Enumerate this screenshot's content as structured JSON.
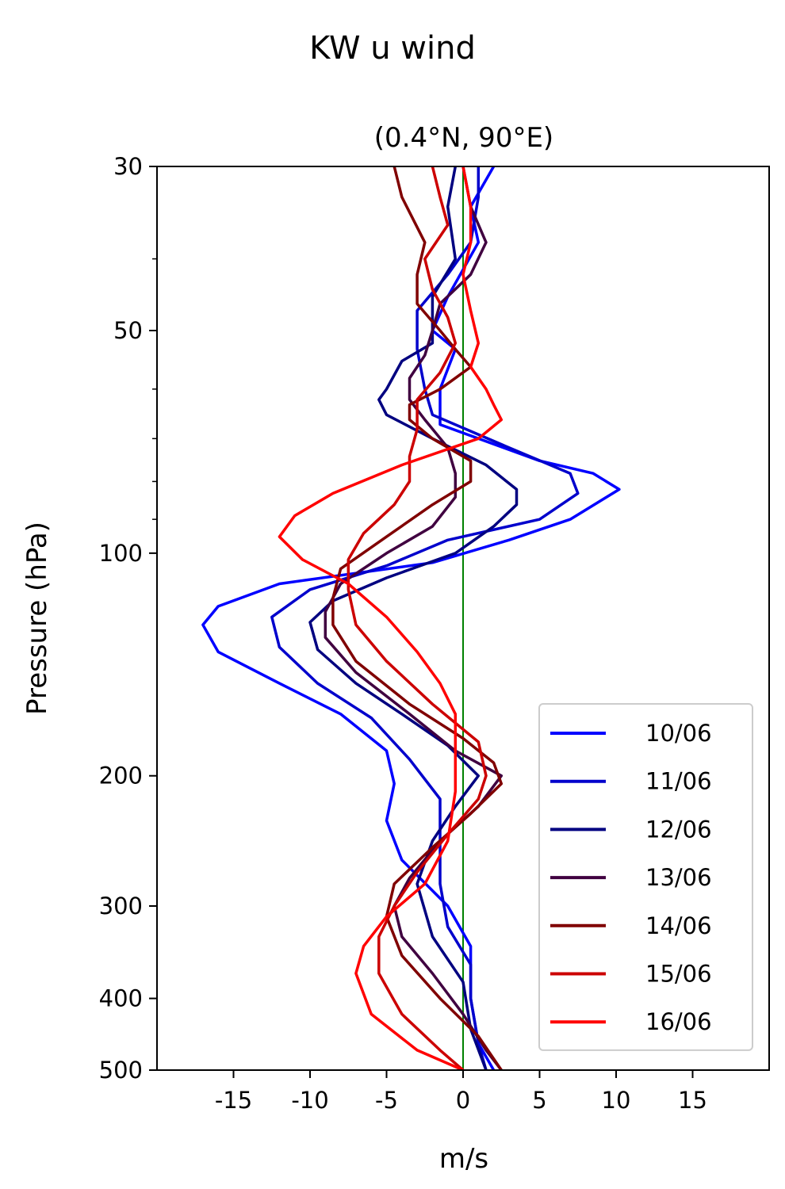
{
  "chart_data": {
    "type": "line",
    "title": "KW u wind",
    "subtitle": "(0.4°N, 90°E)",
    "xlabel": "m/s",
    "ylabel": "Pressure (hPa)",
    "xlim": [
      -20,
      20
    ],
    "ylim": [
      500,
      30
    ],
    "yscale": "log",
    "x_ticks": [
      -15,
      -10,
      -5,
      0,
      5,
      10,
      15
    ],
    "x_tick_labels": [
      "-15",
      "-10",
      "-5",
      "0",
      "5",
      "10",
      "15"
    ],
    "y_ticks": [
      30,
      50,
      100,
      200,
      300,
      400,
      500
    ],
    "y_tick_labels": [
      "30",
      "50",
      "100",
      "200",
      "300",
      "400",
      "500"
    ],
    "y_minor_ticks": [
      40,
      60,
      70,
      80,
      90
    ],
    "reference_line": {
      "x": 0,
      "color": "#008000"
    },
    "legend_position": "lower-right",
    "grid": false,
    "series": [
      {
        "name": "10/06",
        "color": "#0000ff",
        "points": [
          [
            2.0,
            30
          ],
          [
            0.5,
            34
          ],
          [
            1.0,
            38
          ],
          [
            -1.0,
            45
          ],
          [
            -2.0,
            50
          ],
          [
            -0.5,
            53
          ],
          [
            -1.5,
            60
          ],
          [
            -1.5,
            67
          ],
          [
            5.0,
            75
          ],
          [
            8.5,
            78
          ],
          [
            10.2,
            82
          ],
          [
            7.0,
            90
          ],
          [
            3.0,
            96
          ],
          [
            -2.0,
            103
          ],
          [
            -12.0,
            110
          ],
          [
            -16.0,
            118
          ],
          [
            -17.0,
            125
          ],
          [
            -16.0,
            136
          ],
          [
            -12.0,
            150
          ],
          [
            -8.0,
            165
          ],
          [
            -5.0,
            185
          ],
          [
            -4.5,
            205
          ],
          [
            -5.0,
            230
          ],
          [
            -4.0,
            260
          ],
          [
            -1.0,
            300
          ],
          [
            0.5,
            340
          ],
          [
            0.5,
            400
          ],
          [
            1.0,
            460
          ],
          [
            2.0,
            500
          ]
        ]
      },
      {
        "name": "11/06",
        "color": "#0000cc",
        "points": [
          [
            1.0,
            30
          ],
          [
            1.0,
            33
          ],
          [
            0.5,
            38
          ],
          [
            -1.0,
            42
          ],
          [
            -3.0,
            47
          ],
          [
            -3.0,
            53
          ],
          [
            -2.5,
            60
          ],
          [
            -2.0,
            65
          ],
          [
            3.0,
            72
          ],
          [
            7.0,
            78
          ],
          [
            7.5,
            83
          ],
          [
            5.0,
            90
          ],
          [
            -1.0,
            96
          ],
          [
            -5.0,
            104
          ],
          [
            -10.0,
            112
          ],
          [
            -12.5,
            122
          ],
          [
            -12.0,
            134
          ],
          [
            -9.5,
            150
          ],
          [
            -6.0,
            167
          ],
          [
            -3.5,
            190
          ],
          [
            -1.5,
            215
          ],
          [
            -1.5,
            245
          ],
          [
            -1.5,
            280
          ],
          [
            -1.0,
            320
          ],
          [
            0.5,
            360
          ],
          [
            0.5,
            400
          ],
          [
            1.0,
            460
          ],
          [
            1.5,
            500
          ]
        ]
      },
      {
        "name": "12/06",
        "color": "#000080",
        "points": [
          [
            -0.5,
            30
          ],
          [
            -1.0,
            34
          ],
          [
            -0.5,
            40
          ],
          [
            -2.0,
            45
          ],
          [
            -2.0,
            52
          ],
          [
            -4.0,
            55
          ],
          [
            -5.0,
            60
          ],
          [
            -5.5,
            62
          ],
          [
            -5.0,
            65
          ],
          [
            -2.0,
            70
          ],
          [
            1.5,
            76
          ],
          [
            3.5,
            82
          ],
          [
            3.5,
            86
          ],
          [
            2.0,
            92
          ],
          [
            -0.5,
            100
          ],
          [
            -5.0,
            108
          ],
          [
            -8.5,
            116
          ],
          [
            -10.0,
            124
          ],
          [
            -9.5,
            135
          ],
          [
            -7.0,
            150
          ],
          [
            -4.0,
            165
          ],
          [
            -1.0,
            182
          ],
          [
            1.0,
            200
          ],
          [
            -0.5,
            220
          ],
          [
            -2.0,
            245
          ],
          [
            -3.0,
            280
          ],
          [
            -2.0,
            330
          ],
          [
            0.0,
            380
          ],
          [
            0.5,
            440
          ],
          [
            1.5,
            500
          ]
        ]
      },
      {
        "name": "13/06",
        "color": "#400040",
        "points": [
          [
            0.0,
            30
          ],
          [
            0.5,
            34
          ],
          [
            1.5,
            38
          ],
          [
            0.5,
            42
          ],
          [
            -1.5,
            46
          ],
          [
            -2.0,
            50
          ],
          [
            -2.5,
            54
          ],
          [
            -3.5,
            58
          ],
          [
            -3.5,
            62
          ],
          [
            -2.5,
            66
          ],
          [
            -1.0,
            72
          ],
          [
            -0.5,
            78
          ],
          [
            -0.5,
            84
          ],
          [
            -2.0,
            92
          ],
          [
            -5.0,
            100
          ],
          [
            -8.0,
            110
          ],
          [
            -9.0,
            120
          ],
          [
            -9.0,
            130
          ],
          [
            -7.0,
            145
          ],
          [
            -3.5,
            165
          ],
          [
            -0.5,
            185
          ],
          [
            2.5,
            200
          ],
          [
            1.0,
            220
          ],
          [
            -1.5,
            245
          ],
          [
            -3.5,
            275
          ],
          [
            -4.5,
            300
          ],
          [
            -4.0,
            330
          ],
          [
            -2.0,
            370
          ],
          [
            0.0,
            420
          ],
          [
            1.5,
            470
          ],
          [
            2.5,
            500
          ]
        ]
      },
      {
        "name": "14/06",
        "color": "#800000",
        "points": [
          [
            -4.5,
            30
          ],
          [
            -4.0,
            33
          ],
          [
            -2.5,
            38
          ],
          [
            -3.0,
            42
          ],
          [
            -3.0,
            46
          ],
          [
            -1.5,
            50
          ],
          [
            -0.5,
            53
          ],
          [
            0.5,
            56
          ],
          [
            -1.5,
            60
          ],
          [
            -3.5,
            63
          ],
          [
            -3.5,
            66
          ],
          [
            -2.0,
            70
          ],
          [
            0.5,
            75
          ],
          [
            0.5,
            80
          ],
          [
            -2.0,
            86
          ],
          [
            -5.0,
            95
          ],
          [
            -8.0,
            105
          ],
          [
            -8.5,
            115
          ],
          [
            -8.5,
            125
          ],
          [
            -7.0,
            140
          ],
          [
            -3.5,
            160
          ],
          [
            0.0,
            178
          ],
          [
            2.0,
            192
          ],
          [
            2.5,
            205
          ],
          [
            0.5,
            225
          ],
          [
            -2.0,
            250
          ],
          [
            -4.5,
            280
          ],
          [
            -5.0,
            310
          ],
          [
            -4.0,
            350
          ],
          [
            -1.5,
            400
          ],
          [
            1.0,
            450
          ],
          [
            2.5,
            500
          ]
        ]
      },
      {
        "name": "15/06",
        "color": "#cc0000",
        "points": [
          [
            -2.0,
            30
          ],
          [
            -1.5,
            33
          ],
          [
            -1.0,
            36
          ],
          [
            -2.5,
            40
          ],
          [
            -2.0,
            44
          ],
          [
            -1.0,
            48
          ],
          [
            -0.5,
            52
          ],
          [
            -1.5,
            57
          ],
          [
            -3.0,
            62
          ],
          [
            -3.0,
            68
          ],
          [
            -3.5,
            74
          ],
          [
            -3.5,
            80
          ],
          [
            -4.5,
            86
          ],
          [
            -6.5,
            94
          ],
          [
            -7.5,
            102
          ],
          [
            -7.5,
            112
          ],
          [
            -7.0,
            125
          ],
          [
            -5.0,
            140
          ],
          [
            -2.0,
            160
          ],
          [
            1.0,
            180
          ],
          [
            1.5,
            200
          ],
          [
            1.0,
            215
          ],
          [
            -1.0,
            240
          ],
          [
            -3.0,
            270
          ],
          [
            -4.5,
            300
          ],
          [
            -5.5,
            330
          ],
          [
            -5.5,
            370
          ],
          [
            -4.0,
            420
          ],
          [
            -1.5,
            470
          ],
          [
            0.0,
            500
          ]
        ]
      },
      {
        "name": "16/06",
        "color": "#ff0000",
        "points": [
          [
            0.0,
            30
          ],
          [
            0.5,
            34
          ],
          [
            0.5,
            38
          ],
          [
            0.0,
            42
          ],
          [
            0.5,
            47
          ],
          [
            1.0,
            52
          ],
          [
            0.5,
            56
          ],
          [
            1.5,
            60
          ],
          [
            2.0,
            63
          ],
          [
            2.5,
            66
          ],
          [
            1.0,
            70
          ],
          [
            -4.0,
            76
          ],
          [
            -8.5,
            83
          ],
          [
            -11.0,
            89
          ],
          [
            -12.0,
            95
          ],
          [
            -10.5,
            102
          ],
          [
            -7.5,
            110
          ],
          [
            -5.0,
            122
          ],
          [
            -3.0,
            136
          ],
          [
            -1.5,
            150
          ],
          [
            -0.5,
            165
          ],
          [
            -0.5,
            185
          ],
          [
            -0.5,
            210
          ],
          [
            -1.0,
            245
          ],
          [
            -2.5,
            280
          ],
          [
            -5.0,
            310
          ],
          [
            -6.5,
            340
          ],
          [
            -7.0,
            370
          ],
          [
            -6.0,
            420
          ],
          [
            -3.0,
            470
          ],
          [
            0.0,
            500
          ]
        ]
      }
    ]
  }
}
